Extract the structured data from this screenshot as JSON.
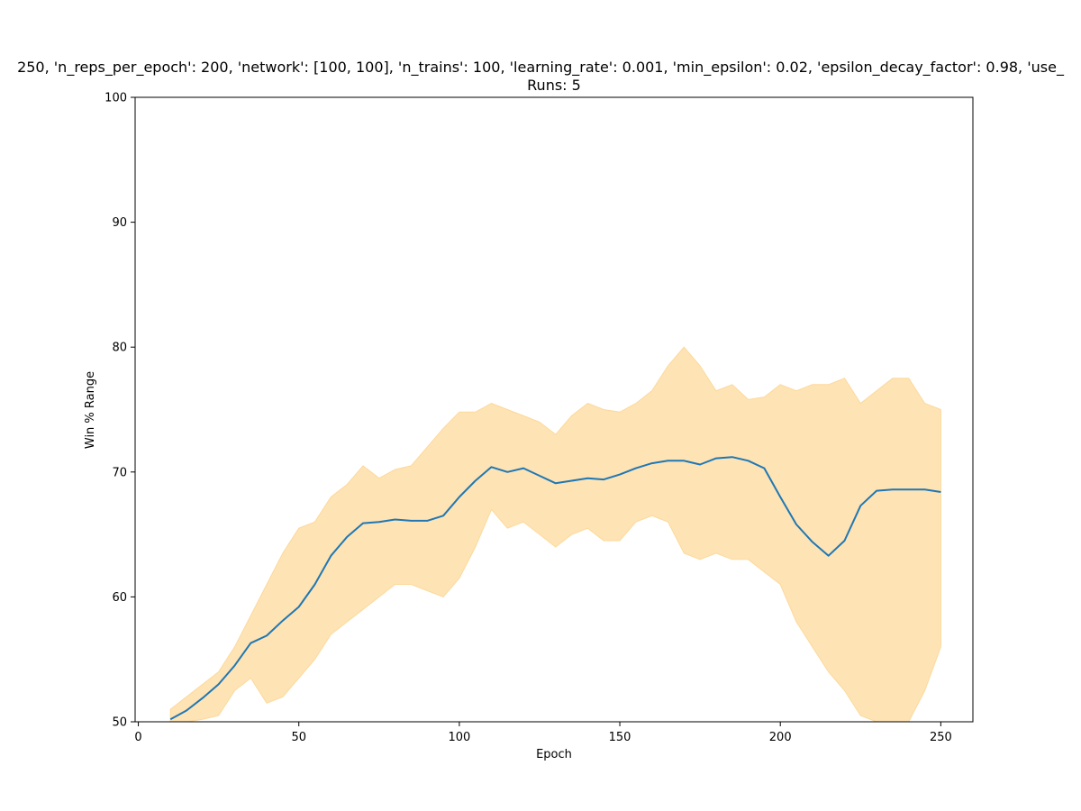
{
  "chart_data": {
    "type": "line",
    "title": "250, 'n_reps_per_epoch': 200, 'network': [100, 100], 'n_trains': 100, 'learning_rate': 0.001, 'min_epsilon': 0.02, 'epsilon_decay_factor': 0.98, 'use_",
    "subtitle": "Runs: 5",
    "xlabel": "Epoch",
    "ylabel": "Win % Range",
    "xlim": [
      -1,
      260
    ],
    "ylim": [
      50,
      100
    ],
    "xticks": [
      0,
      50,
      100,
      150,
      200,
      250
    ],
    "yticks": [
      50,
      60,
      70,
      80,
      90,
      100
    ],
    "xtick_labels": [
      "0",
      "50",
      "100",
      "150",
      "200",
      "250"
    ],
    "ytick_labels": [
      "50",
      "60",
      "70",
      "80",
      "90",
      "100"
    ],
    "grid": false,
    "colors": {
      "line": "#1f77b4",
      "band": "#fdd99b",
      "axes": "#000000"
    },
    "series": [
      {
        "kind": "mean-line",
        "x": [
          10,
          15,
          20,
          25,
          30,
          35,
          40,
          45,
          50,
          55,
          60,
          65,
          70,
          75,
          80,
          85,
          90,
          95,
          100,
          105,
          110,
          115,
          120,
          125,
          130,
          135,
          140,
          145,
          150,
          155,
          160,
          165,
          170,
          175,
          180,
          185,
          190,
          195,
          200,
          205,
          210,
          215,
          220,
          225,
          230,
          235,
          240,
          245,
          250
        ],
        "values": [
          50.2,
          50.9,
          51.9,
          53.0,
          54.5,
          56.3,
          56.9,
          58.1,
          59.2,
          61.0,
          63.3,
          64.8,
          65.9,
          66.0,
          66.2,
          66.1,
          66.1,
          66.5,
          68.0,
          69.3,
          70.4,
          70.0,
          70.3,
          69.7,
          69.1,
          69.3,
          69.5,
          69.4,
          69.8,
          70.3,
          70.7,
          70.9,
          70.9,
          70.6,
          71.1,
          71.2,
          70.9,
          70.3,
          68.0,
          65.8,
          64.4,
          63.3,
          64.5,
          67.3,
          68.5,
          68.6,
          68.6,
          68.6,
          68.4
        ]
      },
      {
        "kind": "range-band",
        "x": [
          10,
          15,
          20,
          25,
          30,
          35,
          40,
          45,
          50,
          55,
          60,
          65,
          70,
          75,
          80,
          85,
          90,
          95,
          100,
          105,
          110,
          115,
          120,
          125,
          130,
          135,
          140,
          145,
          150,
          155,
          160,
          165,
          170,
          175,
          180,
          185,
          190,
          195,
          200,
          205,
          210,
          215,
          220,
          225,
          230,
          235,
          240,
          245,
          250
        ],
        "upper": [
          51.0,
          52.0,
          53.0,
          54.0,
          56.0,
          58.5,
          61.0,
          63.5,
          65.5,
          66.0,
          68.0,
          69.0,
          70.5,
          69.5,
          70.2,
          70.5,
          72.0,
          73.5,
          74.8,
          74.8,
          75.5,
          75.0,
          74.5,
          74.0,
          73.0,
          74.5,
          75.5,
          75.0,
          74.8,
          75.5,
          76.5,
          78.5,
          80.0,
          78.5,
          76.5,
          77.0,
          75.8,
          76.0,
          77.0,
          76.5,
          77.0,
          77.0,
          77.5,
          75.5,
          76.5,
          77.5,
          77.5,
          75.5,
          75.0
        ],
        "lower": [
          50.0,
          50.0,
          50.2,
          50.5,
          52.5,
          53.5,
          51.5,
          52.0,
          53.5,
          55.0,
          57.0,
          58.0,
          59.0,
          60.0,
          61.0,
          61.0,
          60.5,
          60.0,
          61.5,
          64.0,
          67.0,
          65.5,
          66.0,
          65.0,
          64.0,
          65.0,
          65.5,
          64.5,
          64.5,
          66.0,
          66.5,
          66.0,
          63.5,
          63.0,
          63.5,
          63.0,
          63.0,
          62.0,
          61.0,
          58.0,
          56.0,
          54.0,
          52.5,
          50.5,
          50.0,
          50.0,
          50.0,
          52.5,
          56.0
        ]
      }
    ]
  }
}
